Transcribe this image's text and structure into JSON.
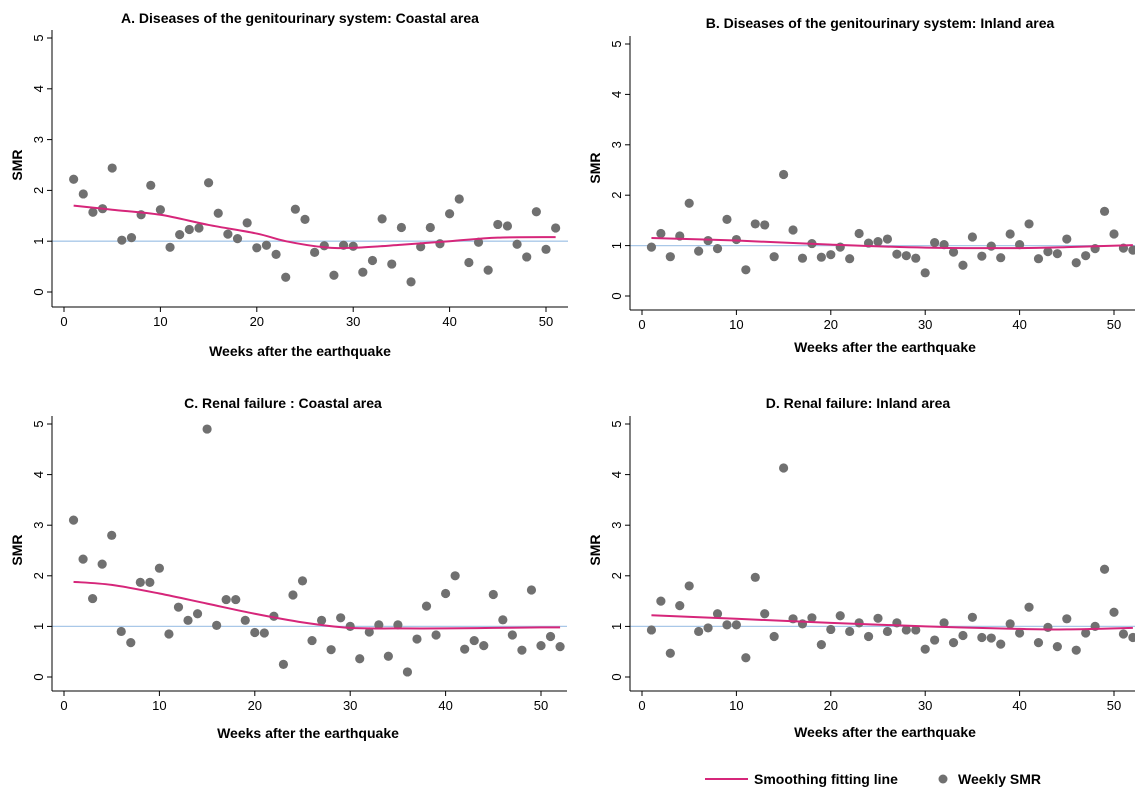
{
  "legend": {
    "line_label": "Smoothing fitting line",
    "dot_label": "Weekly SMR"
  },
  "colors": {
    "smooth_line": "#d6267a",
    "dots": "#707070",
    "reference_line": "#a9c8e8"
  },
  "chart_data": [
    {
      "type": "scatter",
      "title": "A. Diseases of the genitourinary system: Coastal area",
      "xlabel": "Weeks after the earthquake",
      "ylabel": "SMR",
      "xlim": [
        0,
        52
      ],
      "ylim": [
        0,
        5
      ],
      "xticks": [
        0,
        10,
        20,
        30,
        40,
        50
      ],
      "yticks": [
        0,
        1,
        2,
        3,
        4,
        5
      ],
      "reference_y": 1,
      "series": [
        {
          "name": "Weekly SMR",
          "x": [
            1,
            2,
            3,
            4,
            5,
            6,
            7,
            8,
            9,
            10,
            11,
            12,
            13,
            14,
            15,
            16,
            17,
            18,
            19,
            20,
            21,
            22,
            23,
            24,
            25,
            26,
            27,
            28,
            29,
            30,
            31,
            32,
            33,
            34,
            35,
            36,
            37,
            38,
            39,
            40,
            41,
            42,
            43,
            44,
            45,
            46,
            47,
            48,
            49,
            50,
            51
          ],
          "y": [
            2.22,
            1.93,
            1.57,
            1.64,
            2.44,
            1.02,
            1.07,
            1.52,
            2.1,
            1.62,
            0.88,
            1.13,
            1.23,
            1.26,
            2.15,
            1.55,
            1.14,
            1.05,
            1.36,
            0.87,
            0.92,
            0.74,
            0.29,
            1.63,
            1.43,
            0.78,
            0.91,
            0.33,
            0.92,
            0.9,
            0.39,
            0.62,
            1.44,
            0.55,
            1.27,
            0.2,
            0.89,
            1.27,
            0.95,
            1.54,
            1.83,
            0.58,
            0.98,
            0.43,
            1.33,
            1.3,
            0.94,
            0.69,
            1.58,
            0.84,
            1.26
          ]
        },
        {
          "name": "Smoothing fitting line",
          "x": [
            1,
            5,
            10,
            15,
            20,
            23,
            27,
            30,
            35,
            40,
            45,
            51
          ],
          "y": [
            1.7,
            1.62,
            1.52,
            1.32,
            1.15,
            1.0,
            0.88,
            0.87,
            0.93,
            1.0,
            1.07,
            1.08
          ]
        }
      ]
    },
    {
      "type": "scatter",
      "title": "B. Diseases of the genitourinary system: Inland area",
      "xlabel": "Weeks after the earthquake",
      "ylabel": "SMR",
      "xlim": [
        0,
        52
      ],
      "ylim": [
        0,
        5
      ],
      "xticks": [
        0,
        10,
        20,
        30,
        40,
        50
      ],
      "yticks": [
        0,
        1,
        2,
        3,
        4,
        5
      ],
      "reference_y": 1,
      "series": [
        {
          "name": "Weekly SMR",
          "x": [
            1,
            2,
            3,
            4,
            5,
            6,
            7,
            8,
            9,
            10,
            11,
            12,
            13,
            14,
            15,
            16,
            17,
            18,
            19,
            20,
            21,
            22,
            23,
            24,
            25,
            26,
            27,
            28,
            29,
            30,
            31,
            32,
            33,
            34,
            35,
            36,
            37,
            38,
            39,
            40,
            41,
            42,
            43,
            44,
            45,
            46,
            47,
            48,
            49,
            50,
            51,
            52
          ],
          "y": [
            0.97,
            1.24,
            0.78,
            1.19,
            1.84,
            0.89,
            1.1,
            0.94,
            1.52,
            1.12,
            0.52,
            1.43,
            1.41,
            0.78,
            2.41,
            1.31,
            0.75,
            1.04,
            0.77,
            0.82,
            0.97,
            0.74,
            1.24,
            1.05,
            1.08,
            1.13,
            0.83,
            0.8,
            0.75,
            0.46,
            1.06,
            1.02,
            0.87,
            0.61,
            1.17,
            0.79,
            0.99,
            0.76,
            1.23,
            1.02,
            1.43,
            0.74,
            0.88,
            0.84,
            1.13,
            0.66,
            0.8,
            0.94,
            1.68,
            1.23,
            0.95,
            0.91
          ]
        },
        {
          "name": "Smoothing fitting line",
          "x": [
            1,
            10,
            20,
            30,
            40,
            45,
            52
          ],
          "y": [
            1.15,
            1.1,
            1.02,
            0.96,
            0.95,
            0.97,
            1.01
          ]
        }
      ]
    },
    {
      "type": "scatter",
      "title": "C. Renal failure : Coastal area",
      "xlabel": "Weeks after the earthquake",
      "ylabel": "SMR",
      "xlim": [
        0,
        52
      ],
      "ylim": [
        0,
        5
      ],
      "xticks": [
        0,
        10,
        20,
        30,
        40,
        50
      ],
      "yticks": [
        0,
        1,
        2,
        3,
        4,
        5
      ],
      "reference_y": 1,
      "series": [
        {
          "name": "Weekly SMR",
          "x": [
            1,
            2,
            3,
            4,
            5,
            6,
            7,
            8,
            9,
            10,
            11,
            12,
            13,
            14,
            15,
            16,
            17,
            18,
            19,
            20,
            21,
            22,
            23,
            24,
            25,
            26,
            27,
            28,
            29,
            30,
            31,
            32,
            33,
            34,
            35,
            36,
            37,
            38,
            39,
            40,
            41,
            42,
            43,
            44,
            45,
            46,
            47,
            48,
            49,
            50,
            51,
            52
          ],
          "y": [
            3.1,
            2.33,
            1.55,
            2.23,
            2.8,
            0.9,
            0.68,
            1.87,
            1.87,
            2.15,
            0.85,
            1.38,
            1.12,
            1.25,
            4.9,
            1.02,
            1.53,
            1.53,
            1.12,
            0.88,
            0.87,
            1.2,
            0.25,
            1.62,
            1.9,
            0.72,
            1.12,
            0.54,
            1.17,
            1.0,
            0.36,
            0.89,
            1.03,
            0.41,
            1.03,
            0.1,
            0.75,
            1.4,
            0.83,
            1.65,
            2.0,
            0.55,
            0.72,
            0.62,
            1.63,
            1.13,
            0.83,
            0.53,
            1.72,
            0.62,
            0.8,
            0.6
          ]
        },
        {
          "name": "Smoothing fitting line",
          "x": [
            1,
            5,
            10,
            15,
            20,
            25,
            30,
            35,
            40,
            45,
            50,
            52
          ],
          "y": [
            1.88,
            1.82,
            1.65,
            1.45,
            1.25,
            1.08,
            0.97,
            0.96,
            0.96,
            0.97,
            0.98,
            0.98
          ]
        }
      ]
    },
    {
      "type": "scatter",
      "title": "D. Renal failure: Inland area",
      "xlabel": "Weeks after the earthquake",
      "ylabel": "SMR",
      "xlim": [
        0,
        52
      ],
      "ylim": [
        0,
        5
      ],
      "xticks": [
        0,
        10,
        20,
        30,
        40,
        50
      ],
      "yticks": [
        0,
        1,
        2,
        3,
        4,
        5
      ],
      "reference_y": 1,
      "series": [
        {
          "name": "Weekly SMR",
          "x": [
            1,
            2,
            3,
            4,
            5,
            6,
            7,
            8,
            9,
            10,
            11,
            12,
            13,
            14,
            15,
            16,
            17,
            18,
            19,
            20,
            21,
            22,
            23,
            24,
            25,
            26,
            27,
            28,
            29,
            30,
            31,
            32,
            33,
            34,
            35,
            36,
            37,
            38,
            39,
            40,
            41,
            42,
            43,
            44,
            45,
            46,
            47,
            48,
            49,
            50,
            51,
            52
          ],
          "y": [
            0.93,
            1.5,
            0.47,
            1.41,
            1.8,
            0.9,
            0.97,
            1.25,
            1.03,
            1.03,
            0.38,
            1.97,
            1.25,
            0.8,
            4.13,
            1.15,
            1.05,
            1.17,
            0.64,
            0.94,
            1.21,
            0.9,
            1.07,
            0.8,
            1.16,
            0.9,
            1.07,
            0.93,
            0.93,
            0.55,
            0.73,
            1.07,
            0.68,
            0.82,
            1.18,
            0.78,
            0.77,
            0.65,
            1.05,
            0.87,
            1.38,
            0.68,
            0.98,
            0.6,
            1.15,
            0.53,
            0.87,
            1.0,
            2.13,
            1.28,
            0.85,
            0.78
          ]
        },
        {
          "name": "Smoothing fitting line",
          "x": [
            1,
            10,
            20,
            30,
            40,
            45,
            52
          ],
          "y": [
            1.22,
            1.15,
            1.07,
            1.0,
            0.95,
            0.94,
            0.97
          ]
        }
      ]
    }
  ]
}
